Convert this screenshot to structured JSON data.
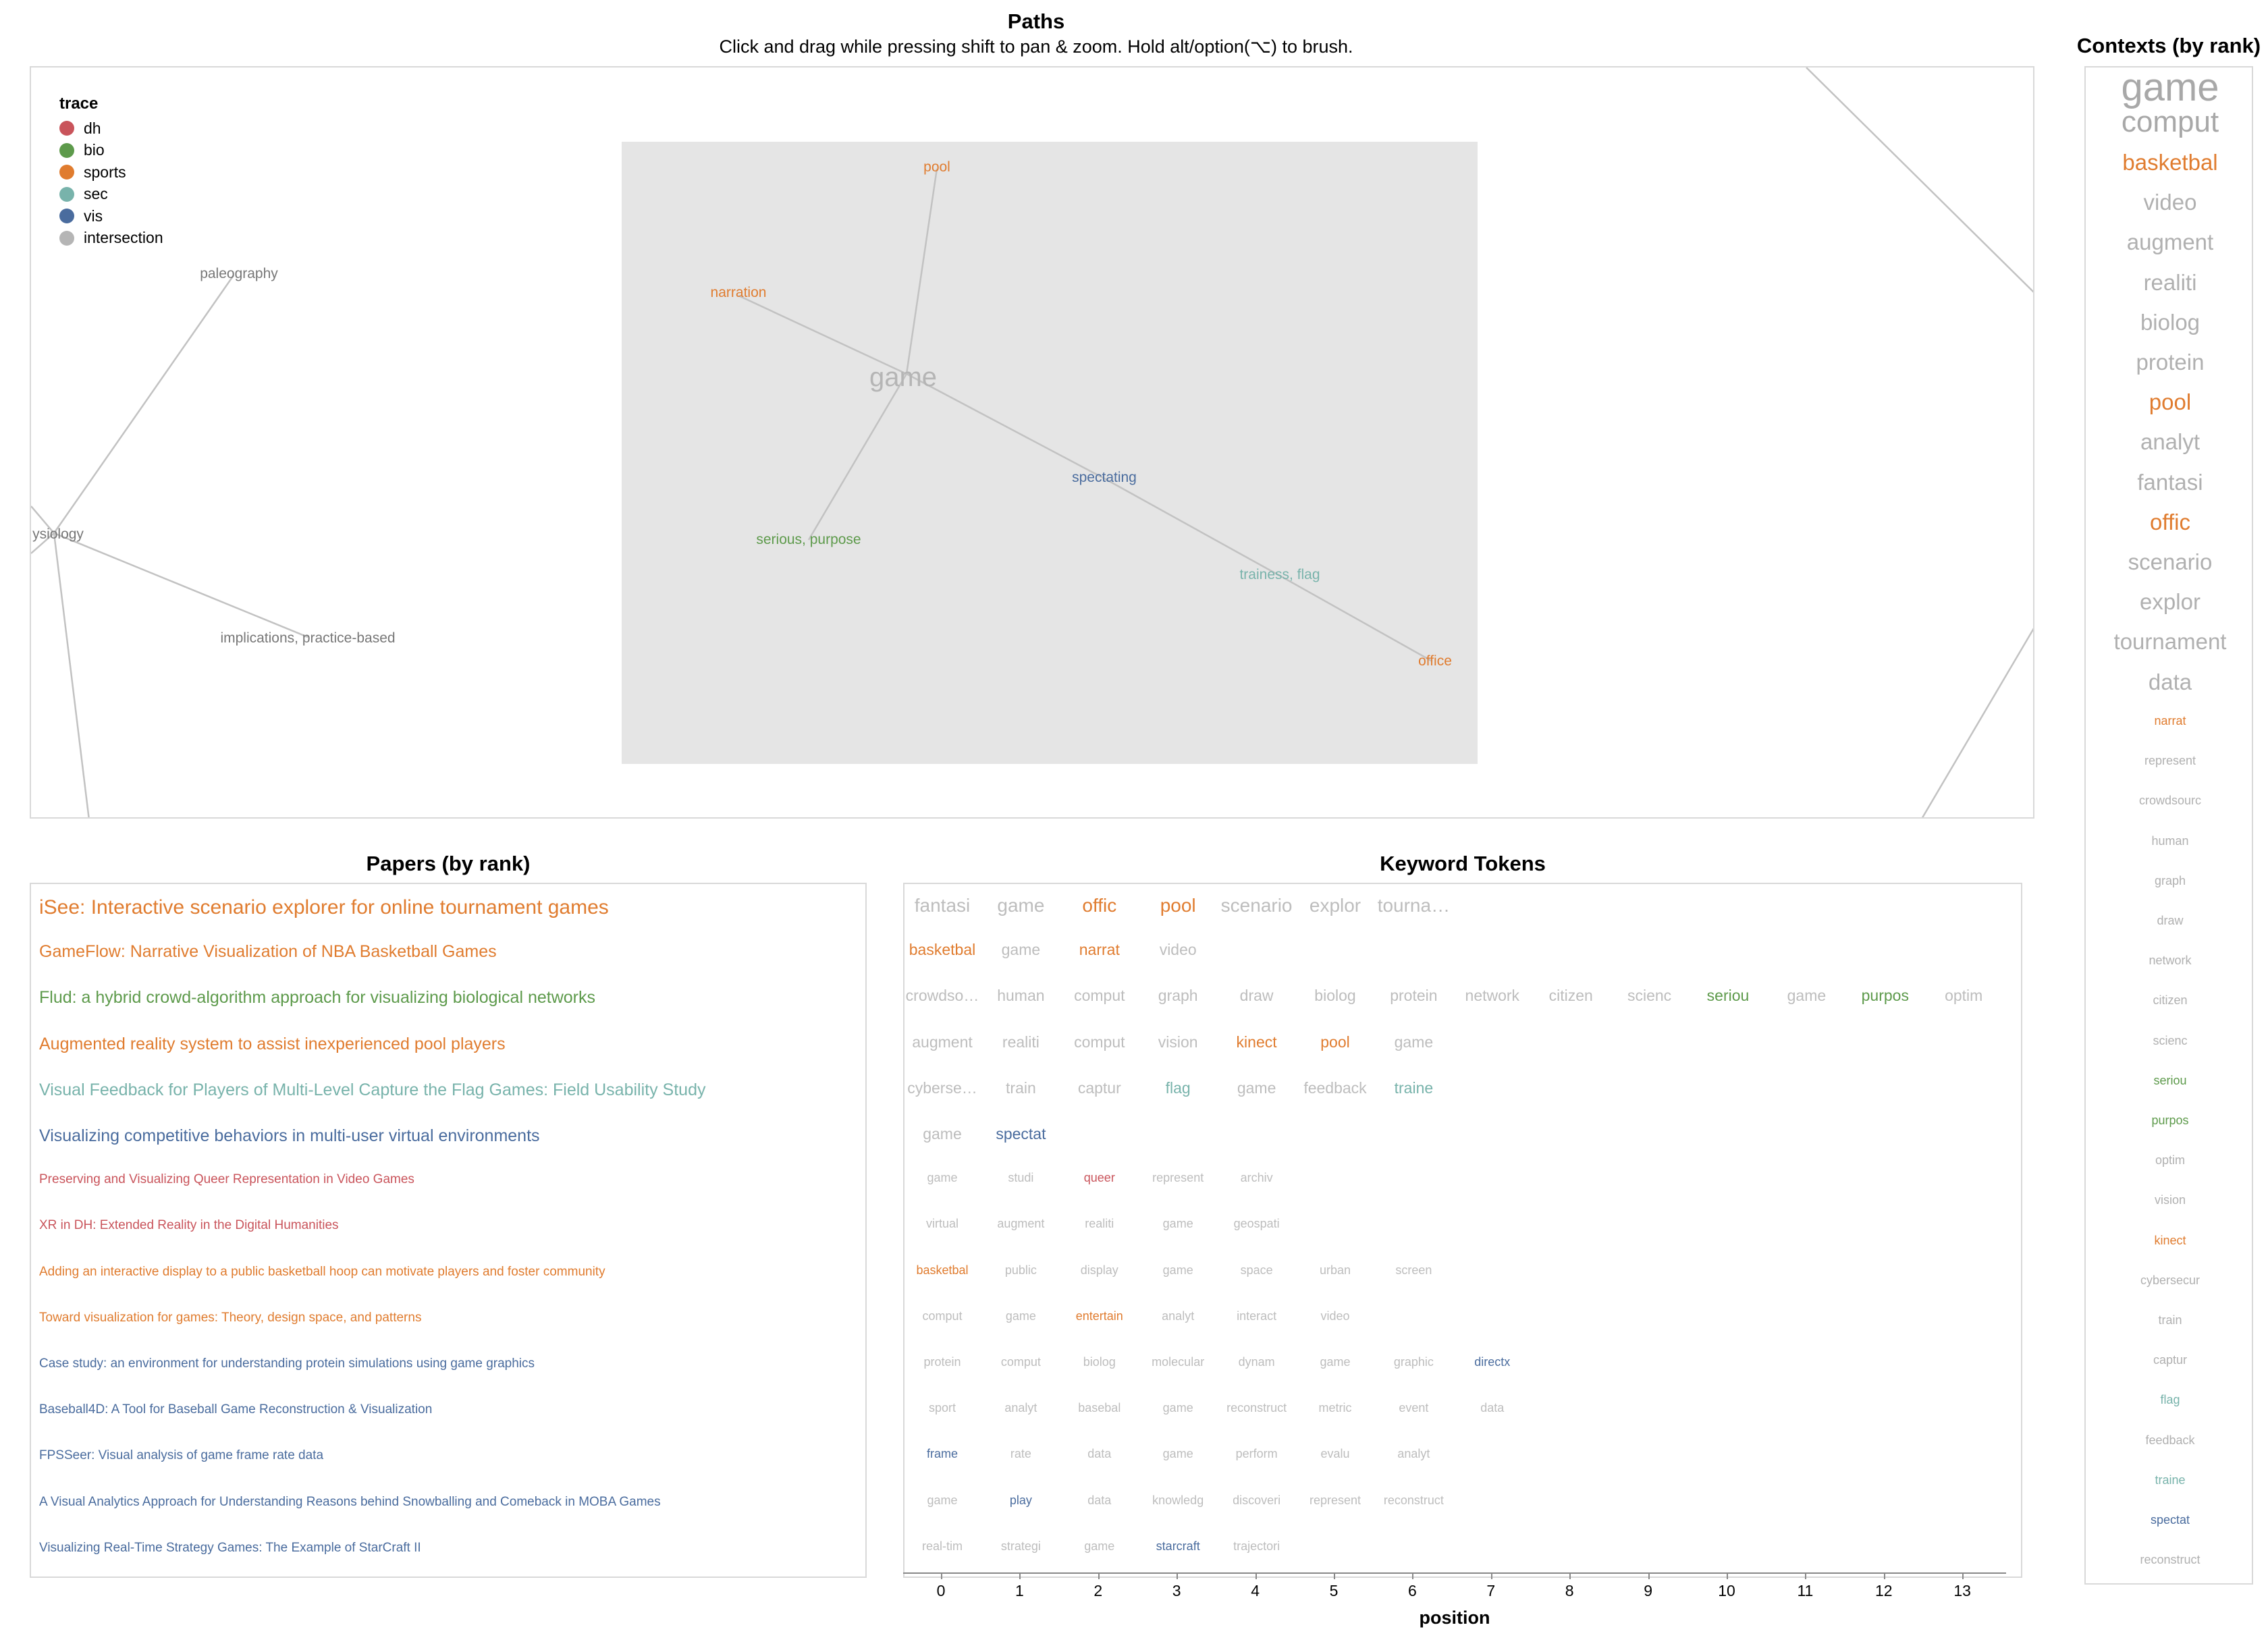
{
  "colors": {
    "dh": "#c9545b",
    "bio": "#5d9a4b",
    "sports": "#e07c2f",
    "sec": "#78b3ab",
    "vis": "#4a6c9e",
    "intersection": "#b5b5b5",
    "brush": "#e5e5e5",
    "edge": "#c0c0c0",
    "grey_text": "#a8a8a8"
  },
  "paths": {
    "title": "Paths",
    "subtitle": "Click and drag while pressing shift to pan & zoom. Hold alt/option(⌥) to brush.",
    "legend": {
      "title": "trace",
      "items": [
        {
          "label": "dh",
          "color": "#c9545b"
        },
        {
          "label": "bio",
          "color": "#5d9a4b"
        },
        {
          "label": "sports",
          "color": "#e07c2f"
        },
        {
          "label": "sec",
          "color": "#78b3ab"
        },
        {
          "label": "vis",
          "color": "#4a6c9e"
        },
        {
          "label": "intersection",
          "color": "#b5b5b5"
        }
      ]
    },
    "nodes": {
      "game": "game",
      "pool": "pool",
      "narration": "narration",
      "spectating": "spectating",
      "serious_purpose": "serious, purpose",
      "trainess_flag": "trainess, flag",
      "office": "office",
      "paleography": "paleography",
      "physiology": "ysiology",
      "implications": "implications, practice-based"
    }
  },
  "papers": {
    "title": "Papers (by rank)",
    "items": [
      {
        "title": "iSee: Interactive scenario explorer for online tournament games",
        "trace": "sports"
      },
      {
        "title": "GameFlow: Narrative Visualization of NBA Basketball Games",
        "trace": "sports"
      },
      {
        "title": "Flud: a hybrid crowd-algorithm approach for visualizing biological networks",
        "trace": "bio"
      },
      {
        "title": "Augmented reality system to assist inexperienced pool players",
        "trace": "sports"
      },
      {
        "title": "Visual Feedback for Players of Multi-Level Capture the Flag Games: Field Usability Study",
        "trace": "sec"
      },
      {
        "title": "Visualizing competitive behaviors in multi-user virtual environments",
        "trace": "vis"
      },
      {
        "title": "Preserving and Visualizing Queer Representation in Video Games",
        "trace": "dh"
      },
      {
        "title": "XR in DH: Extended Reality in the Digital Humanities",
        "trace": "dh"
      },
      {
        "title": "Adding an interactive display to a public basketball hoop can motivate players and foster community",
        "trace": "sports"
      },
      {
        "title": "Toward visualization for games: Theory, design space, and patterns",
        "trace": "sports"
      },
      {
        "title": "Case study: an environment for understanding protein simulations using game graphics",
        "trace": "vis"
      },
      {
        "title": "Baseball4D: A Tool for Baseball Game Reconstruction & Visualization",
        "trace": "vis"
      },
      {
        "title": "FPSSeer: Visual analysis of game frame rate data",
        "trace": "vis"
      },
      {
        "title": "A Visual Analytics Approach for Understanding Reasons behind Snowballing and Comeback in MOBA Games",
        "trace": "vis"
      },
      {
        "title": "Visualizing Real-Time Strategy Games: The Example of StarCraft II",
        "trace": "vis"
      }
    ]
  },
  "tokens": {
    "title": "Keyword Tokens",
    "axis_title": "position",
    "ticks": [
      "0",
      "1",
      "2",
      "3",
      "4",
      "5",
      "6",
      "7",
      "8",
      "9",
      "10",
      "11",
      "12",
      "13"
    ],
    "rows": [
      [
        [
          "fantasi",
          ""
        ],
        [
          "game",
          ""
        ],
        [
          "offic",
          "sports"
        ],
        [
          "pool",
          "sports"
        ],
        [
          "scenario",
          ""
        ],
        [
          "explor",
          ""
        ],
        [
          "tourna…",
          ""
        ]
      ],
      [
        [
          "basketbal",
          "sports"
        ],
        [
          "game",
          ""
        ],
        [
          "narrat",
          "sports"
        ],
        [
          "video",
          ""
        ]
      ],
      [
        [
          "crowdso…",
          ""
        ],
        [
          "human",
          ""
        ],
        [
          "comput",
          ""
        ],
        [
          "graph",
          ""
        ],
        [
          "draw",
          ""
        ],
        [
          "biolog",
          ""
        ],
        [
          "protein",
          ""
        ],
        [
          "network",
          ""
        ],
        [
          "citizen",
          ""
        ],
        [
          "scienc",
          ""
        ],
        [
          "seriou",
          "bio"
        ],
        [
          "game",
          ""
        ],
        [
          "purpos",
          "bio"
        ],
        [
          "optim",
          ""
        ]
      ],
      [
        [
          "augment",
          ""
        ],
        [
          "realiti",
          ""
        ],
        [
          "comput",
          ""
        ],
        [
          "vision",
          ""
        ],
        [
          "kinect",
          "sports"
        ],
        [
          "pool",
          "sports"
        ],
        [
          "game",
          ""
        ]
      ],
      [
        [
          "cyberse…",
          ""
        ],
        [
          "train",
          ""
        ],
        [
          "captur",
          ""
        ],
        [
          "flag",
          "sec"
        ],
        [
          "game",
          ""
        ],
        [
          "feedback",
          ""
        ],
        [
          "traine",
          "sec"
        ]
      ],
      [
        [
          "game",
          ""
        ],
        [
          "spectat",
          "vis"
        ]
      ],
      [
        [
          "game",
          ""
        ],
        [
          "studi",
          ""
        ],
        [
          "queer",
          "dh"
        ],
        [
          "represent",
          ""
        ],
        [
          "archiv",
          ""
        ]
      ],
      [
        [
          "virtual",
          ""
        ],
        [
          "augment",
          ""
        ],
        [
          "realiti",
          ""
        ],
        [
          "game",
          ""
        ],
        [
          "geospati",
          ""
        ]
      ],
      [
        [
          "basketbal",
          "sports"
        ],
        [
          "public",
          ""
        ],
        [
          "display",
          ""
        ],
        [
          "game",
          ""
        ],
        [
          "space",
          ""
        ],
        [
          "urban",
          ""
        ],
        [
          "screen",
          ""
        ]
      ],
      [
        [
          "comput",
          ""
        ],
        [
          "game",
          ""
        ],
        [
          "entertain",
          "sports"
        ],
        [
          "analyt",
          ""
        ],
        [
          "interact",
          ""
        ],
        [
          "video",
          ""
        ]
      ],
      [
        [
          "protein",
          ""
        ],
        [
          "comput",
          ""
        ],
        [
          "biolog",
          ""
        ],
        [
          "molecular",
          ""
        ],
        [
          "dynam",
          ""
        ],
        [
          "game",
          ""
        ],
        [
          "graphic",
          ""
        ],
        [
          "directx",
          "vis"
        ]
      ],
      [
        [
          "sport",
          ""
        ],
        [
          "analyt",
          ""
        ],
        [
          "basebal",
          ""
        ],
        [
          "game",
          ""
        ],
        [
          "reconstruct",
          ""
        ],
        [
          "metric",
          ""
        ],
        [
          "event",
          ""
        ],
        [
          "data",
          ""
        ]
      ],
      [
        [
          "frame",
          "vis"
        ],
        [
          "rate",
          ""
        ],
        [
          "data",
          ""
        ],
        [
          "game",
          ""
        ],
        [
          "perform",
          ""
        ],
        [
          "evalu",
          ""
        ],
        [
          "analyt",
          ""
        ]
      ],
      [
        [
          "game",
          ""
        ],
        [
          "play",
          "vis"
        ],
        [
          "data",
          ""
        ],
        [
          "knowledg",
          ""
        ],
        [
          "discoveri",
          ""
        ],
        [
          "represent",
          ""
        ],
        [
          "reconstruct",
          ""
        ]
      ],
      [
        [
          "real-tim",
          ""
        ],
        [
          "strategi",
          ""
        ],
        [
          "game",
          ""
        ],
        [
          "starcraft",
          "vis"
        ],
        [
          "trajectori",
          ""
        ]
      ]
    ]
  },
  "contexts": {
    "title": "Contexts (by rank)",
    "items": [
      [
        "game",
        ""
      ],
      [
        "comput",
        ""
      ],
      [
        "basketbal",
        "sports"
      ],
      [
        "video",
        ""
      ],
      [
        "augment",
        ""
      ],
      [
        "realiti",
        ""
      ],
      [
        "biolog",
        ""
      ],
      [
        "protein",
        ""
      ],
      [
        "pool",
        "sports"
      ],
      [
        "analyt",
        ""
      ],
      [
        "fantasi",
        ""
      ],
      [
        "offic",
        "sports"
      ],
      [
        "scenario",
        ""
      ],
      [
        "explor",
        ""
      ],
      [
        "tournament",
        ""
      ],
      [
        "data",
        ""
      ],
      [
        "narrat",
        "sports"
      ],
      [
        "represent",
        ""
      ],
      [
        "crowdsourc",
        ""
      ],
      [
        "human",
        ""
      ],
      [
        "graph",
        ""
      ],
      [
        "draw",
        ""
      ],
      [
        "network",
        ""
      ],
      [
        "citizen",
        ""
      ],
      [
        "scienc",
        ""
      ],
      [
        "seriou",
        "bio"
      ],
      [
        "purpos",
        "bio"
      ],
      [
        "optim",
        ""
      ],
      [
        "vision",
        ""
      ],
      [
        "kinect",
        "sports"
      ],
      [
        "cybersecur",
        ""
      ],
      [
        "train",
        ""
      ],
      [
        "captur",
        ""
      ],
      [
        "flag",
        "sec"
      ],
      [
        "feedback",
        ""
      ],
      [
        "traine",
        "sec"
      ],
      [
        "spectat",
        "vis"
      ],
      [
        "reconstruct",
        ""
      ]
    ]
  }
}
